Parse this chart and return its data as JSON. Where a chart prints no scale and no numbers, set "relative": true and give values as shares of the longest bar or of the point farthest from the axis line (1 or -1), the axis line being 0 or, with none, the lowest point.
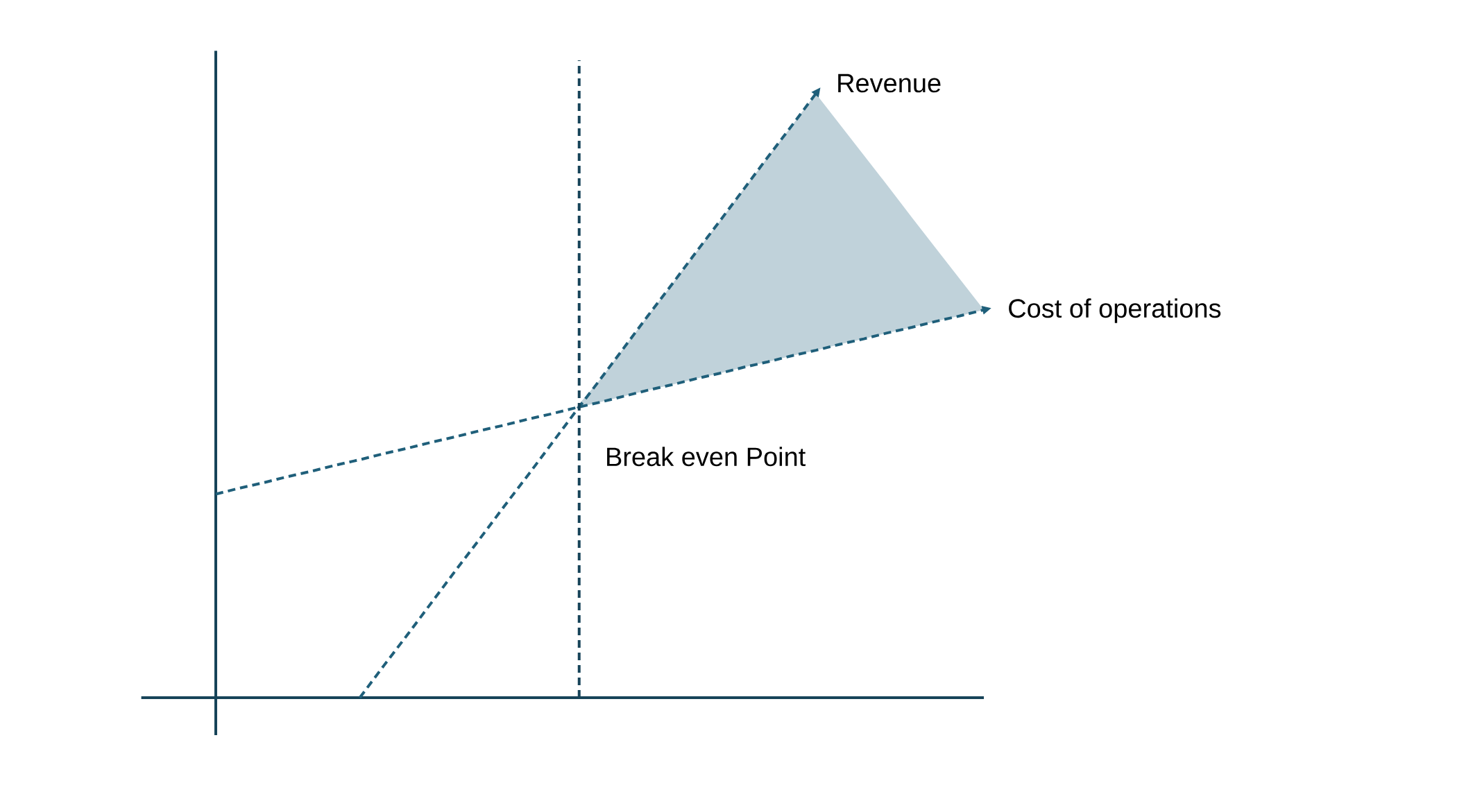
{
  "chart_data": {
    "type": "line",
    "relative": true,
    "line_style": "dashed",
    "categories": [
      null,
      null,
      null,
      null,
      null,
      null,
      null,
      null,
      null,
      null,
      null,
      null,
      null,
      null,
      null,
      null,
      null,
      null,
      null,
      null,
      null,
      null,
      null,
      null,
      null,
      null,
      null,
      null,
      null,
      null,
      null,
      null,
      null
    ],
    "series": [
      {
        "name": "Revenue",
        "color": "#1f5f7a",
        "values": [
          null,
          null,
          null,
          null,
          null,
          null,
          0,
          0.053,
          0.105,
          0.158,
          0.211,
          0.263,
          0.316,
          0.368,
          0.421,
          0.474,
          0.526,
          0.579,
          0.632,
          0.684,
          0.737,
          0.789,
          0.842,
          0.895,
          0.947,
          1,
          null,
          null,
          null,
          null,
          null,
          null,
          null
        ]
      },
      {
        "name": "Cost of operations",
        "color": "#1f5f7a",
        "values": [
          0.337,
          0.347,
          0.356,
          0.366,
          0.375,
          0.385,
          0.394,
          0.404,
          0.413,
          0.423,
          0.432,
          0.442,
          0.451,
          0.461,
          0.47,
          0.48,
          0.489,
          0.499,
          0.509,
          0.518,
          0.528,
          0.537,
          0.547,
          0.556,
          0.566,
          0.575,
          0.585,
          0.594,
          0.604,
          0.613,
          0.623,
          0.632,
          0.642
        ],
        "lower": [
          null,
          null,
          null,
          null,
          null,
          null,
          null,
          null,
          null,
          null,
          null,
          null,
          null,
          null,
          null,
          0.48,
          0.489,
          0.499,
          0.509,
          0.518,
          0.528,
          0.537,
          0.547,
          0.556,
          0.566,
          0.575,
          0.585,
          0.594,
          0.604,
          0.613,
          0.623,
          0.632,
          0.642
        ],
        "upper": [
          null,
          null,
          null,
          null,
          null,
          null,
          null,
          null,
          null,
          null,
          null,
          null,
          null,
          null,
          null,
          0.48,
          0.526,
          0.579,
          0.632,
          0.684,
          0.737,
          0.789,
          0.842,
          0.895,
          0.947,
          1,
          0.949,
          0.898,
          0.847,
          0.795,
          0.744,
          0.693,
          0.642
        ]
      }
    ],
    "annotations": [
      "Break even Point"
    ]
  }
}
